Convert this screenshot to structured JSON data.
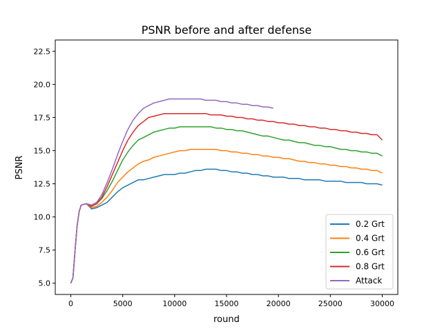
{
  "chart_data": {
    "type": "line",
    "title": "PSNR before and after defense",
    "xlabel": "round",
    "ylabel": "PSNR",
    "xlim": [
      -1500,
      31500
    ],
    "ylim": [
      4.15,
      23.35
    ],
    "xticks": [
      0,
      5000,
      10000,
      15000,
      20000,
      25000,
      30000
    ],
    "xtick_labels": [
      "0",
      "5000",
      "10000",
      "15000",
      "20000",
      "25000",
      "30000"
    ],
    "yticks": [
      5.0,
      7.5,
      10.0,
      12.5,
      15.0,
      17.5,
      20.0,
      22.5
    ],
    "ytick_labels": [
      "5.0",
      "7.5",
      "10.0",
      "12.5",
      "15.0",
      "17.5",
      "20.0",
      "22.5"
    ],
    "grid": false,
    "legend_position": "lower right",
    "x": [
      0,
      200,
      400,
      600,
      800,
      1000,
      1500,
      2000,
      2500,
      3000,
      3500,
      4000,
      4500,
      5000,
      5500,
      6000,
      6500,
      7000,
      7500,
      8000,
      8500,
      9000,
      9500,
      10000,
      10500,
      11000,
      11500,
      12000,
      12500,
      13000,
      13500,
      14000,
      14500,
      15000,
      15500,
      16000,
      16500,
      17000,
      17500,
      18000,
      18500,
      19000,
      19500,
      20000,
      20500,
      21000,
      21500,
      22000,
      22500,
      23000,
      23500,
      24000,
      24500,
      25000,
      25500,
      26000,
      26500,
      27000,
      27500,
      28000,
      28500,
      29000,
      29500,
      30000
    ],
    "series": [
      {
        "name": "0.2 Grt",
        "color": "#1f77b4",
        "values": [
          5.0,
          5.4,
          7.4,
          9.3,
          10.4,
          10.9,
          11.0,
          10.6,
          10.7,
          10.9,
          11.1,
          11.5,
          11.9,
          12.2,
          12.4,
          12.6,
          12.8,
          12.8,
          12.9,
          13.0,
          13.1,
          13.2,
          13.2,
          13.2,
          13.3,
          13.3,
          13.4,
          13.5,
          13.5,
          13.6,
          13.6,
          13.6,
          13.5,
          13.5,
          13.4,
          13.4,
          13.3,
          13.3,
          13.2,
          13.2,
          13.1,
          13.1,
          13.0,
          13.0,
          13.0,
          12.9,
          12.9,
          12.9,
          12.8,
          12.8,
          12.8,
          12.8,
          12.7,
          12.7,
          12.7,
          12.7,
          12.6,
          12.6,
          12.6,
          12.6,
          12.5,
          12.5,
          12.5,
          12.4
        ]
      },
      {
        "name": "0.4 Grt",
        "color": "#ff7f0e",
        "values": [
          5.0,
          5.4,
          7.4,
          9.3,
          10.4,
          10.9,
          11.0,
          10.7,
          10.8,
          11.1,
          11.5,
          12.0,
          12.6,
          13.0,
          13.4,
          13.7,
          14.0,
          14.2,
          14.3,
          14.5,
          14.6,
          14.7,
          14.8,
          14.9,
          15.0,
          15.0,
          15.1,
          15.1,
          15.1,
          15.1,
          15.1,
          15.1,
          15.0,
          15.0,
          14.9,
          14.9,
          14.8,
          14.8,
          14.7,
          14.7,
          14.6,
          14.6,
          14.5,
          14.5,
          14.4,
          14.4,
          14.3,
          14.2,
          14.2,
          14.1,
          14.1,
          14.0,
          14.0,
          13.9,
          13.9,
          13.8,
          13.8,
          13.7,
          13.7,
          13.6,
          13.6,
          13.5,
          13.5,
          13.3
        ]
      },
      {
        "name": "0.6 Grt",
        "color": "#2ca02c",
        "values": [
          5.0,
          5.4,
          7.4,
          9.3,
          10.4,
          10.9,
          11.0,
          10.8,
          11.0,
          11.4,
          12.0,
          12.7,
          13.5,
          14.3,
          14.9,
          15.4,
          15.8,
          16.0,
          16.2,
          16.4,
          16.5,
          16.6,
          16.7,
          16.7,
          16.8,
          16.8,
          16.8,
          16.8,
          16.8,
          16.8,
          16.8,
          16.7,
          16.7,
          16.6,
          16.6,
          16.5,
          16.5,
          16.4,
          16.3,
          16.2,
          16.1,
          16.1,
          16.0,
          15.9,
          15.8,
          15.8,
          15.7,
          15.6,
          15.6,
          15.5,
          15.4,
          15.4,
          15.3,
          15.3,
          15.2,
          15.1,
          15.1,
          15.0,
          15.0,
          14.9,
          14.9,
          14.8,
          14.8,
          14.6
        ]
      },
      {
        "name": "0.8 Grt",
        "color": "#d62728",
        "values": [
          5.0,
          5.4,
          7.4,
          9.3,
          10.4,
          10.9,
          11.0,
          10.8,
          11.0,
          11.5,
          12.3,
          13.2,
          14.1,
          15.0,
          15.8,
          16.4,
          16.9,
          17.2,
          17.5,
          17.6,
          17.7,
          17.8,
          17.8,
          17.8,
          17.8,
          17.8,
          17.8,
          17.8,
          17.8,
          17.8,
          17.7,
          17.7,
          17.7,
          17.6,
          17.6,
          17.5,
          17.5,
          17.4,
          17.4,
          17.3,
          17.3,
          17.2,
          17.2,
          17.1,
          17.1,
          17.0,
          17.0,
          16.9,
          16.9,
          16.8,
          16.8,
          16.7,
          16.7,
          16.6,
          16.6,
          16.5,
          16.5,
          16.4,
          16.4,
          16.3,
          16.3,
          16.2,
          16.2,
          15.8
        ]
      },
      {
        "name": "Attack",
        "color": "#9467bd",
        "values": [
          5.0,
          5.4,
          7.4,
          9.3,
          10.4,
          10.9,
          11.0,
          10.9,
          11.1,
          11.7,
          12.6,
          13.6,
          14.7,
          15.7,
          16.6,
          17.3,
          17.8,
          18.2,
          18.4,
          18.6,
          18.7,
          18.8,
          18.9,
          18.9,
          18.9,
          18.9,
          18.9,
          18.9,
          18.9,
          18.8,
          18.8,
          18.8,
          18.7,
          18.7,
          18.6,
          18.6,
          18.5,
          18.5,
          18.4,
          18.4,
          18.3,
          18.3,
          18.2,
          null,
          null,
          null,
          null,
          null,
          null,
          null,
          null,
          null,
          null,
          null,
          null,
          null,
          null,
          null,
          null,
          null,
          null,
          null,
          null,
          null
        ]
      }
    ]
  }
}
